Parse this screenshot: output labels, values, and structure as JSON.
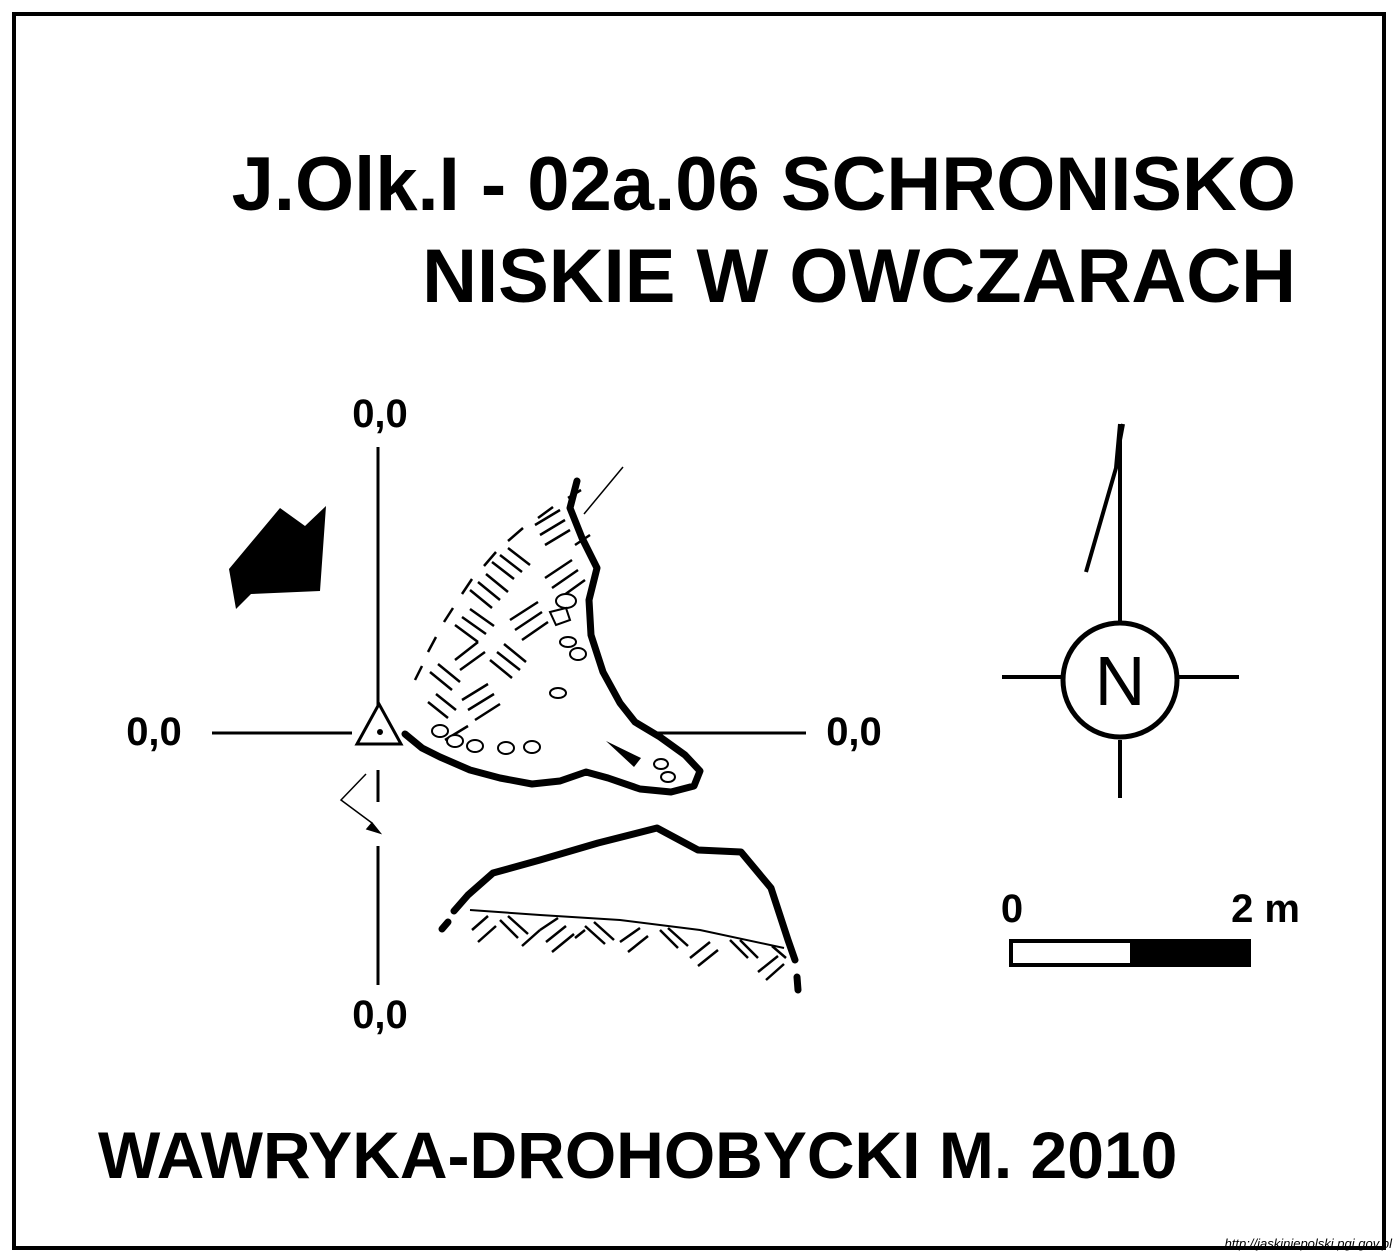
{
  "title": {
    "line1": "J.Olk.I - 02a.06  SCHRONISKO",
    "line2": "NISKIE W OWCZARACH"
  },
  "datum": {
    "top": "0,0",
    "left": "0,0",
    "right": "0,0",
    "bottom": "0,0"
  },
  "north_arrow": {
    "letter": "N",
    "icon": "compass-north-icon"
  },
  "scale_bar": {
    "start_label": "0",
    "end_label": "2 m"
  },
  "author": "WAWRYKA-DROHOBYCKI M. 2010",
  "source_url": "http://jaskiniepolski.pgi.gov.pl",
  "colors": {
    "ink": "#000000",
    "paper": "#ffffff"
  }
}
